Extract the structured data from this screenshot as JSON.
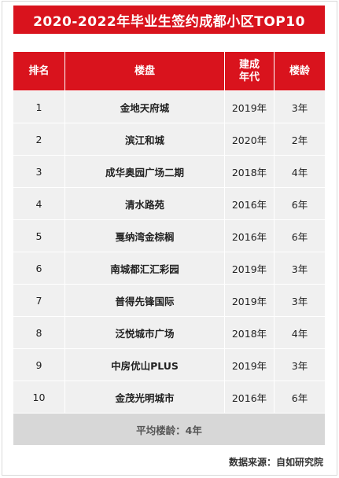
{
  "title": "2020-2022年毕业生签约成都小区TOP10",
  "headers": {
    "rank": "排名",
    "property": "楼盘",
    "year_line1": "建成",
    "year_line2": "年代",
    "age": "楼龄"
  },
  "rows": [
    {
      "rank": "1",
      "property": "金地天府城",
      "year": "2019年",
      "age": "3年"
    },
    {
      "rank": "2",
      "property": "滨江和城",
      "year": "2020年",
      "age": "2年"
    },
    {
      "rank": "3",
      "property": "成华奥园广场二期",
      "year": "2018年",
      "age": "4年"
    },
    {
      "rank": "4",
      "property": "清水路苑",
      "year": "2016年",
      "age": "6年"
    },
    {
      "rank": "5",
      "property": "戛纳湾金棕榈",
      "year": "2016年",
      "age": "6年"
    },
    {
      "rank": "6",
      "property": "南城都汇汇彩园",
      "year": "2019年",
      "age": "3年"
    },
    {
      "rank": "7",
      "property": "普得先锋国际",
      "year": "2019年",
      "age": "3年"
    },
    {
      "rank": "8",
      "property": "泛悦城市广场",
      "year": "2018年",
      "age": "4年"
    },
    {
      "rank": "9",
      "property": "中房优山PLUS",
      "year": "2019年",
      "age": "3年"
    },
    {
      "rank": "10",
      "property": "金茂光明城市",
      "year": "2016年",
      "age": "6年"
    }
  ],
  "average": "平均楼龄：4年",
  "source": "数据来源：自如研究院",
  "colors": {
    "accent": "#d9131d",
    "row_bg": "#f0f0f0",
    "avg_bg": "#d7d7d7"
  }
}
